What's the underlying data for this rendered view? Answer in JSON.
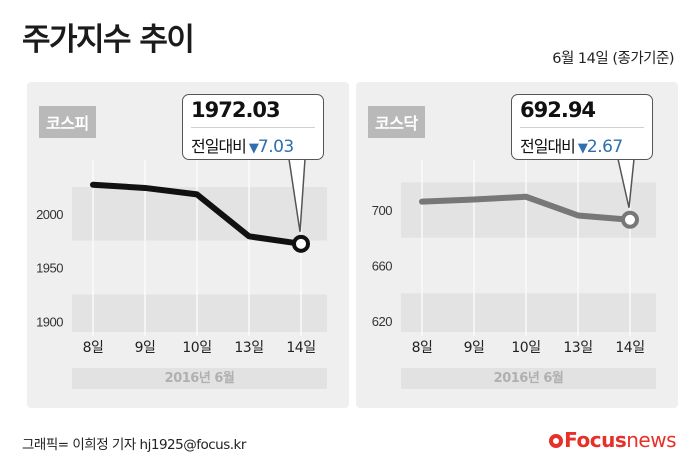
{
  "title": "주가지수 추이",
  "date_note": "6월 14일 (종가기준)",
  "credit": "그래픽= 이희정 기자 hj1925@focus.kr",
  "brand": {
    "part1": "Focus",
    "part2": "news"
  },
  "colors": {
    "kospi_line": "#111111",
    "kosdaq_line": "#777777",
    "down_color": "#2f6fb0"
  },
  "chart_data": [
    {
      "type": "line",
      "badge": "코스피",
      "categories": [
        "8일",
        "9일",
        "10일",
        "13일",
        "14일"
      ],
      "period": "2016년 6월",
      "ylim": [
        1890,
        2050
      ],
      "yticks": [
        1900,
        1950,
        2000
      ],
      "series": [
        {
          "values": [
            2027,
            2024,
            2018,
            1979,
            1972.03
          ]
        }
      ],
      "callout": {
        "value": "1972.03",
        "change_label": "전일대비",
        "change_arrow": "▼",
        "change_value": "7.03"
      },
      "grid": true
    },
    {
      "type": "line",
      "badge": "코스닥",
      "categories": [
        "8일",
        "9일",
        "10일",
        "13일",
        "14일"
      ],
      "period": "2016년 6월",
      "ylim": [
        612,
        736
      ],
      "yticks": [
        620,
        660,
        700
      ],
      "series": [
        {
          "values": [
            706,
            707.5,
            709.5,
            696,
            692.94
          ]
        }
      ],
      "callout": {
        "value": "692.94",
        "change_label": "전일대비",
        "change_arrow": "▼",
        "change_value": "2.67"
      },
      "grid": true
    }
  ]
}
